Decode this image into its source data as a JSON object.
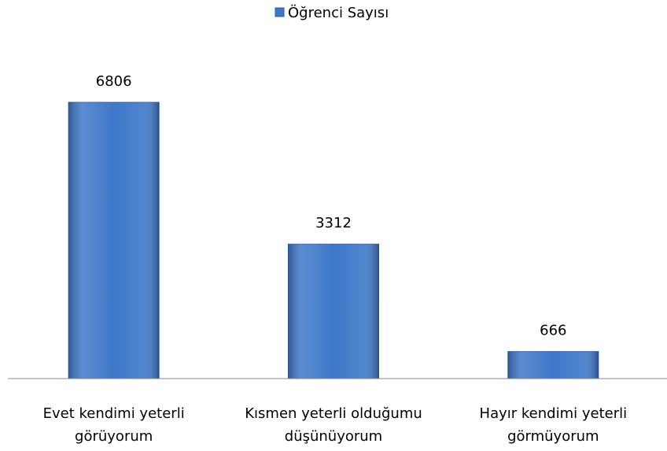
{
  "chart_data": {
    "type": "bar",
    "categories": [
      [
        "Evet kendimi yeterli",
        "görüyorum"
      ],
      [
        "Kısmen yeterli olduğumu",
        "düşünüyorum"
      ],
      [
        "Hayır kendimi yeterli",
        "görmüyorum"
      ]
    ],
    "series": [
      {
        "name": "Öğrenci Sayısı",
        "color": "#3f78c9",
        "values": [
          6806,
          3312,
          666
        ]
      }
    ],
    "ylim": [
      0,
      7000
    ],
    "legend": "top"
  }
}
